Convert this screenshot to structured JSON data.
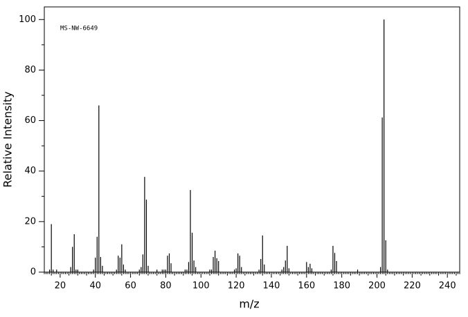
{
  "chart_data": {
    "type": "stem",
    "annotation": "MS-NW-6649",
    "xlabel": "m/z",
    "ylabel": "Relative Intensity",
    "color": "#000000",
    "x": [
      14,
      15,
      16,
      18,
      26,
      27,
      28,
      29,
      30,
      39,
      40,
      41,
      42,
      43,
      44,
      52,
      53,
      54,
      55,
      56,
      57,
      65,
      66,
      67,
      68,
      69,
      70,
      75,
      78,
      79,
      80,
      81,
      82,
      83,
      91,
      92,
      93,
      94,
      95,
      96,
      97,
      105,
      106,
      107,
      108,
      109,
      110,
      119,
      120,
      121,
      122,
      123,
      133,
      134,
      135,
      136,
      146,
      147,
      148,
      149,
      150,
      160,
      161,
      162,
      163,
      174,
      175,
      176,
      177,
      189,
      202,
      203,
      204,
      205,
      206
    ],
    "values": [
      1,
      19,
      1,
      1,
      2,
      10,
      15,
      1,
      1,
      1,
      5.7,
      14,
      66,
      6,
      2.5,
      1,
      6.5,
      5.7,
      11,
      3,
      1,
      1,
      2,
      7,
      37.7,
      28.7,
      2.5,
      1,
      1,
      1,
      1,
      6.5,
      7.4,
      3.5,
      1,
      1,
      4,
      32.5,
      15.6,
      4.6,
      2,
      1,
      1,
      6,
      8.5,
      5.5,
      4.4,
      1,
      1.5,
      7.4,
      6.5,
      2,
      1,
      5.2,
      14.5,
      3,
      1,
      2,
      4.6,
      10.4,
      1.5,
      4,
      2,
      3.3,
      1.5,
      1,
      10.4,
      7.6,
      4.4,
      1,
      2,
      61.2,
      100,
      12.6,
      1
    ],
    "xlim": [
      11,
      247
    ],
    "ylim": [
      0,
      105
    ],
    "xticks": [
      20,
      40,
      60,
      80,
      100,
      120,
      140,
      160,
      180,
      200,
      220,
      240
    ],
    "yticks": [
      0,
      20,
      40,
      60,
      80,
      100
    ]
  }
}
